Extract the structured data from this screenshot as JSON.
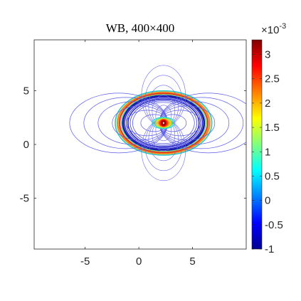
{
  "chart_data": {
    "type": "contour",
    "title": "WB, 400×400",
    "xlabel": "",
    "ylabel": "",
    "xlim": [
      -9.75,
      10
    ],
    "ylim": [
      -9.75,
      9.75
    ],
    "x_ticks": [
      {
        "value": -5,
        "label": "-5"
      },
      {
        "value": 0,
        "label": "0"
      },
      {
        "value": 5,
        "label": "5"
      }
    ],
    "y_ticks": [
      {
        "value": 5,
        "label": "5"
      },
      {
        "value": 0,
        "label": "0"
      },
      {
        "value": -5,
        "label": "-5"
      }
    ],
    "contour_center": [
      2.3,
      2.0
    ],
    "outer_ellipse_radii": [
      4.5,
      3.0
    ],
    "colorbar": {
      "range": [
        -1,
        3.3
      ],
      "multiplier": "×10",
      "exponent": "-3",
      "ticks": [
        {
          "value": 3,
          "label": "3"
        },
        {
          "value": 2.5,
          "label": "2.5"
        },
        {
          "value": 2,
          "label": "2"
        },
        {
          "value": 1.5,
          "label": "1.5"
        },
        {
          "value": 1,
          "label": "1"
        },
        {
          "value": 0.5,
          "label": "0.5"
        },
        {
          "value": 0,
          "label": "0"
        },
        {
          "value": -0.5,
          "label": "-0.5"
        },
        {
          "value": -1,
          "label": "-1"
        }
      ],
      "colormap": "jet"
    },
    "grid": false
  }
}
